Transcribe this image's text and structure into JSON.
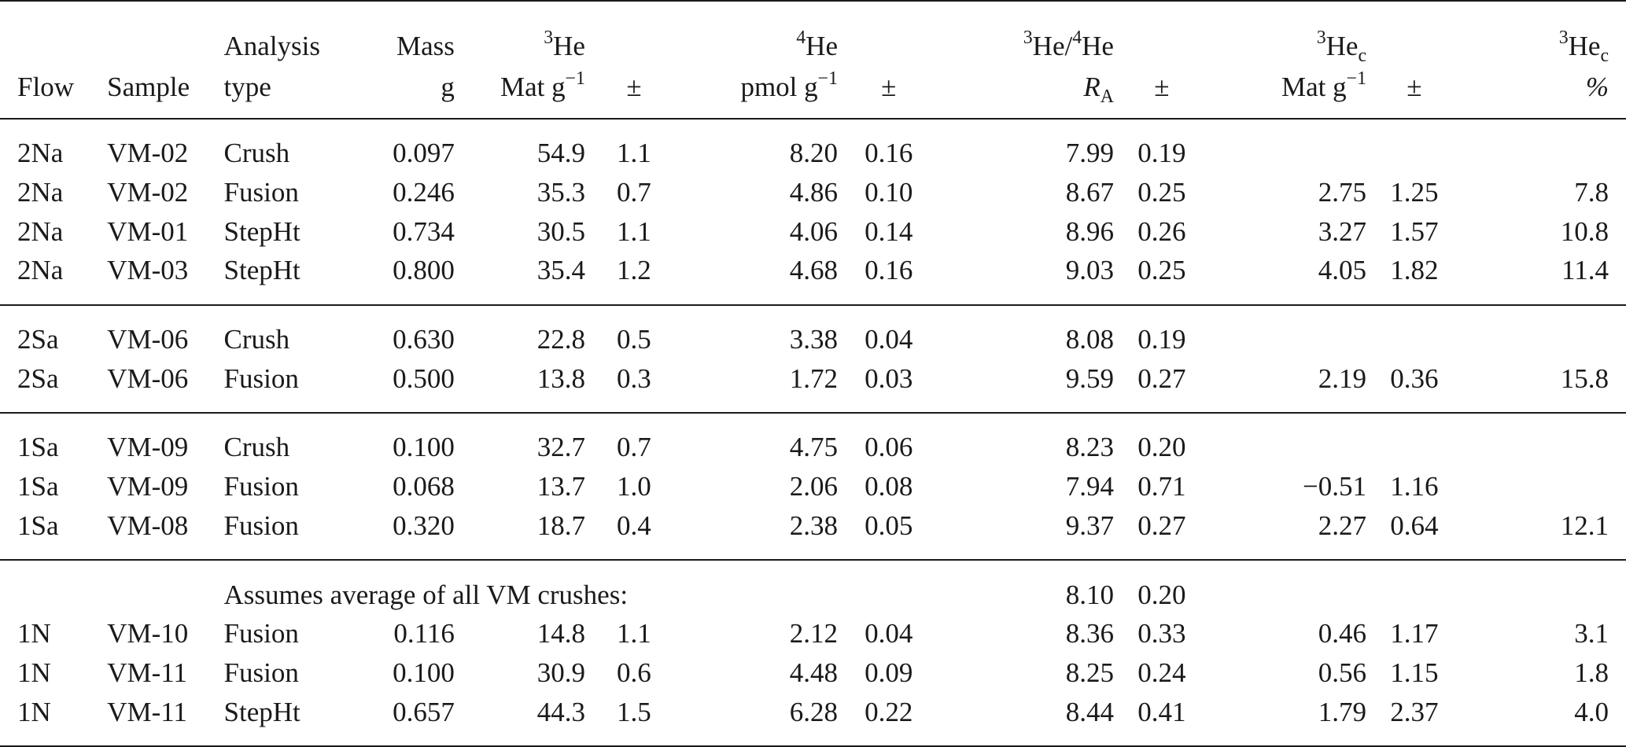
{
  "headers": {
    "row1": {
      "analysis": "Analysis",
      "mass": "Mass",
      "he3_name": "He",
      "he3_sup": "3",
      "he4_name": "He",
      "he4_sup": "4",
      "ratio_sup_a": "3",
      "ratio_a": "He/",
      "ratio_sup_b": "4",
      "ratio_b": "He",
      "hec_sup": "3",
      "hec_name": "He",
      "hec_sub": "c",
      "hecp_sup": "3",
      "hecp_name": "He",
      "hecp_sub": "c"
    },
    "row2": {
      "flow": "Flow",
      "sample": "Sample",
      "type": "type",
      "mass_unit": "g",
      "he3_unit": "Mat g",
      "he3_unit_sup": "−1",
      "pm1": "±",
      "he4_unit": "pmol g",
      "he4_unit_sup": "−1",
      "pm2": "±",
      "ratio_unit": "R",
      "ratio_unit_sub": "A",
      "pm3": "±",
      "hec_unit": "Mat g",
      "hec_unit_sup": "−1",
      "pm4": "±",
      "hecp_unit": "%"
    }
  },
  "groups": [
    {
      "rows": [
        {
          "flow": "2Na",
          "sample": "VM-02",
          "type": "Crush",
          "mass": "0.097",
          "he3": "54.9",
          "he3_err": "1.1",
          "he4": "8.20",
          "he4_err": "0.16",
          "ratio": "7.99",
          "ratio_err": "0.19",
          "hec": "",
          "hec_err": "",
          "hec_pct": ""
        },
        {
          "flow": "2Na",
          "sample": "VM-02",
          "type": "Fusion",
          "mass": "0.246",
          "he3": "35.3",
          "he3_err": "0.7",
          "he4": "4.86",
          "he4_err": "0.10",
          "ratio": "8.67",
          "ratio_err": "0.25",
          "hec": "2.75",
          "hec_err": "1.25",
          "hec_pct": "7.8"
        },
        {
          "flow": "2Na",
          "sample": "VM-01",
          "type": "StepHt",
          "mass": "0.734",
          "he3": "30.5",
          "he3_err": "1.1",
          "he4": "4.06",
          "he4_err": "0.14",
          "ratio": "8.96",
          "ratio_err": "0.26",
          "hec": "3.27",
          "hec_err": "1.57",
          "hec_pct": "10.8"
        },
        {
          "flow": "2Na",
          "sample": "VM-03",
          "type": "StepHt",
          "mass": "0.800",
          "he3": "35.4",
          "he3_err": "1.2",
          "he4": "4.68",
          "he4_err": "0.16",
          "ratio": "9.03",
          "ratio_err": "0.25",
          "hec": "4.05",
          "hec_err": "1.82",
          "hec_pct": "11.4"
        }
      ]
    },
    {
      "rows": [
        {
          "flow": "2Sa",
          "sample": "VM-06",
          "type": "Crush",
          "mass": "0.630",
          "he3": "22.8",
          "he3_err": "0.5",
          "he4": "3.38",
          "he4_err": "0.04",
          "ratio": "8.08",
          "ratio_err": "0.19",
          "hec": "",
          "hec_err": "",
          "hec_pct": ""
        },
        {
          "flow": "2Sa",
          "sample": "VM-06",
          "type": "Fusion",
          "mass": "0.500",
          "he3": "13.8",
          "he3_err": "0.3",
          "he4": "1.72",
          "he4_err": "0.03",
          "ratio": "9.59",
          "ratio_err": "0.27",
          "hec": "2.19",
          "hec_err": "0.36",
          "hec_pct": "15.8"
        }
      ]
    },
    {
      "rows": [
        {
          "flow": "1Sa",
          "sample": "VM-09",
          "type": "Crush",
          "mass": "0.100",
          "he3": "32.7",
          "he3_err": "0.7",
          "he4": "4.75",
          "he4_err": "0.06",
          "ratio": "8.23",
          "ratio_err": "0.20",
          "hec": "",
          "hec_err": "",
          "hec_pct": ""
        },
        {
          "flow": "1Sa",
          "sample": "VM-09",
          "type": "Fusion",
          "mass": "0.068",
          "he3": "13.7",
          "he3_err": "1.0",
          "he4": "2.06",
          "he4_err": "0.08",
          "ratio": "7.94",
          "ratio_err": "0.71",
          "hec": "−0.51",
          "hec_err": "1.16",
          "hec_pct": ""
        },
        {
          "flow": "1Sa",
          "sample": "VM-08",
          "type": "Fusion",
          "mass": "0.320",
          "he3": "18.7",
          "he3_err": "0.4",
          "he4": "2.38",
          "he4_err": "0.05",
          "ratio": "9.37",
          "ratio_err": "0.27",
          "hec": "2.27",
          "hec_err": "0.64",
          "hec_pct": "12.1"
        }
      ]
    }
  ],
  "last_group": {
    "note": "Assumes average of all VM crushes:",
    "note_ratio": "8.10",
    "note_ratio_err": "0.20",
    "rows": [
      {
        "flow": "1N",
        "sample": "VM-10",
        "type": "Fusion",
        "mass": "0.116",
        "he3": "14.8",
        "he3_err": "1.1",
        "he4": "2.12",
        "he4_err": "0.04",
        "ratio": "8.36",
        "ratio_err": "0.33",
        "hec": "0.46",
        "hec_err": "1.17",
        "hec_pct": "3.1"
      },
      {
        "flow": "1N",
        "sample": "VM-11",
        "type": "Fusion",
        "mass": "0.100",
        "he3": "30.9",
        "he3_err": "0.6",
        "he4": "4.48",
        "he4_err": "0.09",
        "ratio": "8.25",
        "ratio_err": "0.24",
        "hec": "0.56",
        "hec_err": "1.15",
        "hec_pct": "1.8"
      },
      {
        "flow": "1N",
        "sample": "VM-11",
        "type": "StepHt",
        "mass": "0.657",
        "he3": "44.3",
        "he3_err": "1.5",
        "he4": "6.28",
        "he4_err": "0.22",
        "ratio": "8.44",
        "ratio_err": "0.41",
        "hec": "1.79",
        "hec_err": "2.37",
        "hec_pct": "4.0"
      }
    ]
  }
}
